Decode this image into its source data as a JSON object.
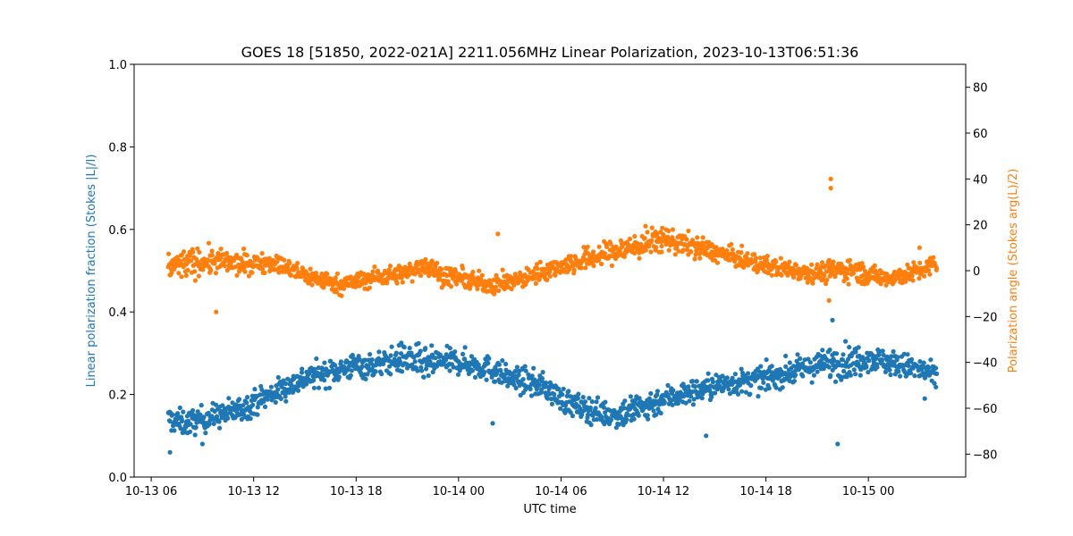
{
  "chart_data": {
    "type": "scatter",
    "title": "GOES 18 [51850, 2022-021A] 2211.056MHz Linear Polarization, 2023-10-13T06:51:36",
    "xlabel": "UTC time",
    "ylabel_left": "Linear polarization fraction (Stokes |L|/I)",
    "ylabel_right": "Polarization angle (Stokes arg(L)/2)",
    "x_ticks": [
      "10-13 06",
      "10-13 12",
      "10-13 18",
      "10-14 00",
      "10-14 06",
      "10-14 12",
      "10-14 18",
      "10-15 00"
    ],
    "x_tick_hours": [
      0,
      6,
      12,
      18,
      24,
      30,
      36,
      42
    ],
    "x_range_hours": [
      -1.0,
      47.7
    ],
    "ylim_left": [
      0.0,
      1.0
    ],
    "yticks_left": [
      "0.0",
      "0.2",
      "0.4",
      "0.6",
      "0.8",
      "1.0"
    ],
    "ylim_right": [
      -90,
      90
    ],
    "yticks_right": [
      "−80",
      "−60",
      "−40",
      "−20",
      "0",
      "20",
      "40",
      "60",
      "80"
    ],
    "grid": false,
    "colors": {
      "fraction": "#1f77b4",
      "angle": "#ff7f0e"
    },
    "series": [
      {
        "key": "fraction",
        "axis": "left",
        "x_hours": [
          1.0,
          2.0,
          3.0,
          4.0,
          5.0,
          6.0,
          7.0,
          8.0,
          9.0,
          10.0,
          11.0,
          12.0,
          13.0,
          14.0,
          15.0,
          16.0,
          17.0,
          18.0,
          19.0,
          20.0,
          21.0,
          22.0,
          23.0,
          24.0,
          25.0,
          26.0,
          27.0,
          28.0,
          29.0,
          30.0,
          31.0,
          32.0,
          33.0,
          34.0,
          35.0,
          36.0,
          37.0,
          38.0,
          39.0,
          40.0,
          41.0,
          42.0,
          43.0,
          44.0,
          45.0,
          46.0
        ],
        "values": [
          0.14,
          0.13,
          0.14,
          0.15,
          0.16,
          0.18,
          0.2,
          0.22,
          0.24,
          0.25,
          0.26,
          0.27,
          0.27,
          0.28,
          0.29,
          0.27,
          0.28,
          0.28,
          0.27,
          0.26,
          0.24,
          0.23,
          0.22,
          0.19,
          0.17,
          0.16,
          0.15,
          0.16,
          0.17,
          0.19,
          0.2,
          0.21,
          0.22,
          0.23,
          0.23,
          0.24,
          0.25,
          0.26,
          0.27,
          0.28,
          0.28,
          0.29,
          0.28,
          0.27,
          0.26,
          0.24
        ],
        "spread": [
          0.03,
          0.03,
          0.03,
          0.03,
          0.03,
          0.03,
          0.03,
          0.03,
          0.03,
          0.03,
          0.03,
          0.03,
          0.03,
          0.03,
          0.04,
          0.04,
          0.03,
          0.03,
          0.03,
          0.03,
          0.03,
          0.03,
          0.03,
          0.03,
          0.03,
          0.03,
          0.03,
          0.04,
          0.04,
          0.03,
          0.03,
          0.03,
          0.03,
          0.03,
          0.03,
          0.03,
          0.03,
          0.03,
          0.03,
          0.04,
          0.04,
          0.03,
          0.03,
          0.03,
          0.03,
          0.03
        ],
        "outliers": [
          [
            1.1,
            0.06
          ],
          [
            3.0,
            0.08
          ],
          [
            20.0,
            0.13
          ],
          [
            32.5,
            0.1
          ],
          [
            39.9,
            0.38
          ],
          [
            40.2,
            0.08
          ],
          [
            45.3,
            0.19
          ]
        ]
      },
      {
        "key": "angle",
        "axis": "right",
        "x_hours": [
          1.0,
          2.0,
          3.0,
          4.0,
          5.0,
          6.0,
          7.0,
          8.0,
          9.0,
          10.0,
          11.0,
          12.0,
          13.0,
          14.0,
          15.0,
          16.0,
          17.0,
          18.0,
          19.0,
          20.0,
          21.0,
          22.0,
          23.0,
          24.0,
          25.0,
          26.0,
          27.0,
          28.0,
          29.0,
          30.0,
          31.0,
          32.0,
          33.0,
          34.0,
          35.0,
          36.0,
          37.0,
          38.0,
          39.0,
          40.0,
          41.0,
          42.0,
          43.0,
          44.0,
          45.0,
          46.0
        ],
        "values": [
          2,
          3,
          4,
          4,
          3,
          3,
          4,
          1,
          -2,
          -4,
          -6,
          -5,
          -3,
          -2,
          -1,
          3,
          -2,
          -3,
          -5,
          -6,
          -5,
          -3,
          0,
          2,
          4,
          6,
          8,
          10,
          12,
          14,
          12,
          10,
          8,
          6,
          4,
          2,
          1,
          0,
          -1,
          0,
          1,
          -2,
          -3,
          -2,
          0,
          3
        ],
        "spread": [
          6,
          6,
          6,
          5,
          5,
          4,
          4,
          4,
          4,
          4,
          4,
          4,
          4,
          4,
          4,
          5,
          4,
          4,
          4,
          4,
          4,
          4,
          4,
          4,
          5,
          5,
          5,
          6,
          6,
          5,
          5,
          5,
          4,
          4,
          4,
          4,
          4,
          4,
          4,
          5,
          5,
          4,
          4,
          4,
          4,
          4
        ],
        "outliers": [
          [
            3.8,
            -18
          ],
          [
            20.3,
            16
          ],
          [
            39.8,
            36
          ],
          [
            39.8,
            40
          ],
          [
            39.7,
            -13
          ],
          [
            45.0,
            10
          ]
        ]
      }
    ]
  }
}
